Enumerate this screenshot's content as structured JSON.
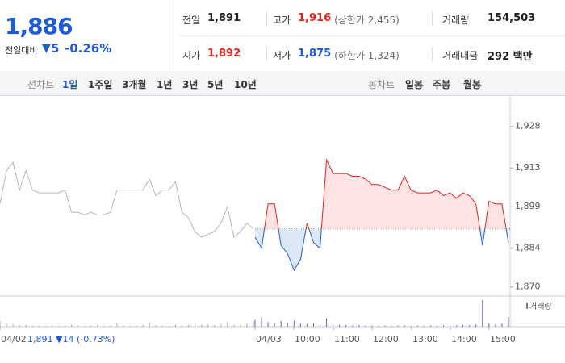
{
  "header": {
    "price": "1,886",
    "change_label": "전일대비",
    "change_symbol": "▼",
    "change": "5",
    "change_pct": "-0.26%",
    "items": [
      {
        "label": "전일",
        "value": "1,891"
      },
      {
        "label": "고가",
        "value": "1,916",
        "note": "(상한가 2,455)"
      },
      {
        "label": "거래량",
        "value": "154,503"
      },
      {
        "label": "시가",
        "value": "1,892"
      },
      {
        "label": "저가",
        "value": "1,875",
        "note": "(하한가 1,324)"
      },
      {
        "label": "거래대금",
        "value": "292 백만"
      }
    ]
  },
  "tabs": {
    "line_label": "선차트",
    "line": [
      "1일",
      "1주일",
      "3개월",
      "1년",
      "3년",
      "5년",
      "10년"
    ],
    "candle_label": "봉차트",
    "candle": [
      "일봉",
      "주봉",
      "월봉"
    ]
  },
  "chart_data": {
    "type": "line",
    "ylim": [
      1867,
      1939
    ],
    "yticks": [
      {
        "value": 1928,
        "label": "1,928"
      },
      {
        "value": 1913,
        "label": "1,913"
      },
      {
        "value": 1899,
        "label": "1,899"
      },
      {
        "value": 1884,
        "label": "1,884"
      },
      {
        "value": 1870,
        "label": "1,870"
      }
    ],
    "reference": 1891,
    "xticks": [
      "04/02",
      "04/03",
      "10:00",
      "11:00",
      "12:00",
      "13:00",
      "14:00",
      "15:00"
    ],
    "prev_summary": "1,891 ▼14 (-0.73%)",
    "volume_label": "거래량",
    "series": [
      {
        "name": "04/02",
        "color": "#b5b5b5",
        "values": [
          1900,
          1912,
          1915,
          1905,
          1912,
          1905,
          1904,
          1904,
          1904,
          1904,
          1905,
          1897,
          1897,
          1896,
          1897,
          1896,
          1896,
          1897,
          1905,
          1905,
          1905,
          1905,
          1905,
          1909,
          1903,
          1905,
          1905,
          1908,
          1897,
          1895,
          1890,
          1888,
          1889,
          1890,
          1893,
          1899,
          1888,
          1890,
          1893,
          1891
        ],
        "volume": [
          1500,
          900,
          600,
          400,
          500,
          300,
          300,
          200,
          300,
          200,
          300,
          600,
          300,
          200,
          300,
          500,
          200,
          300,
          900,
          300,
          200,
          300,
          500,
          1200,
          400,
          300,
          200,
          600,
          300,
          400,
          800,
          500,
          600,
          400,
          700,
          1200,
          500,
          600,
          900,
          1500
        ]
      },
      {
        "name": "04/03",
        "color": "#e0261f",
        "values": [
          1888,
          1884,
          1900,
          1900,
          1885,
          1882,
          1876,
          1880,
          1893,
          1886,
          1884,
          1916,
          1911,
          1911,
          1911,
          1910,
          1910,
          1909,
          1907,
          1907,
          1906,
          1905,
          1905,
          1910,
          1905,
          1904,
          1904,
          1904,
          1905,
          1903,
          1904,
          1902,
          1904,
          1903,
          1900,
          1885,
          1901,
          1900,
          1900,
          1886
        ],
        "volume": [
          1800,
          2500,
          1200,
          900,
          1500,
          1100,
          1600,
          800,
          700,
          900,
          600,
          2200,
          700,
          500,
          400,
          300,
          400,
          300,
          300,
          200,
          300,
          200,
          300,
          400,
          200,
          300,
          200,
          300,
          200,
          300,
          400,
          300,
          500,
          400,
          600,
          7000,
          900,
          600,
          800,
          2500
        ]
      }
    ]
  }
}
